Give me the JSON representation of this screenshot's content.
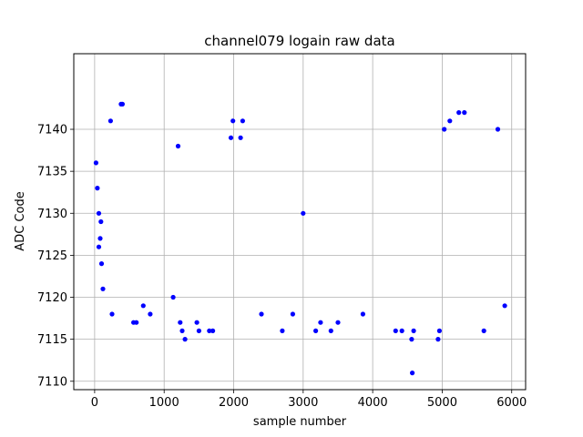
{
  "chart_data": {
    "type": "scatter",
    "title": "channel079 logain raw data",
    "xlabel": "sample number",
    "ylabel": "ADC Code",
    "xlim": [
      -300,
      6200
    ],
    "ylim": [
      7109,
      7149
    ],
    "xticks": [
      0,
      1000,
      2000,
      3000,
      4000,
      5000,
      6000
    ],
    "yticks": [
      7110,
      7115,
      7120,
      7125,
      7130,
      7135,
      7140
    ],
    "grid": true,
    "marker_color": "#0000ff",
    "series": [
      {
        "points": [
          [
            20,
            7136
          ],
          [
            40,
            7133
          ],
          [
            60,
            7130
          ],
          [
            80,
            7127
          ],
          [
            100,
            7124
          ],
          [
            120,
            7121
          ],
          [
            60,
            7126
          ],
          [
            90,
            7129
          ],
          [
            230,
            7141
          ],
          [
            250,
            7118
          ],
          [
            380,
            7143
          ],
          [
            400,
            7143
          ],
          [
            560,
            7117
          ],
          [
            600,
            7117
          ],
          [
            700,
            7119
          ],
          [
            800,
            7118
          ],
          [
            1130,
            7120
          ],
          [
            1200,
            7138
          ],
          [
            1230,
            7117
          ],
          [
            1260,
            7116
          ],
          [
            1300,
            7115
          ],
          [
            1470,
            7117
          ],
          [
            1500,
            7116
          ],
          [
            1650,
            7116
          ],
          [
            1700,
            7116
          ],
          [
            1960,
            7139
          ],
          [
            1990,
            7141
          ],
          [
            2130,
            7141
          ],
          [
            2100,
            7139
          ],
          [
            2400,
            7118
          ],
          [
            2700,
            7116
          ],
          [
            2850,
            7118
          ],
          [
            3000,
            7130
          ],
          [
            3180,
            7116
          ],
          [
            3250,
            7117
          ],
          [
            3400,
            7116
          ],
          [
            3500,
            7117
          ],
          [
            3860,
            7118
          ],
          [
            4330,
            7116
          ],
          [
            4420,
            7116
          ],
          [
            4560,
            7115
          ],
          [
            4570,
            7111
          ],
          [
            4590,
            7116
          ],
          [
            4940,
            7115
          ],
          [
            4960,
            7116
          ],
          [
            5030,
            7140
          ],
          [
            5110,
            7141
          ],
          [
            5240,
            7142
          ],
          [
            5320,
            7142
          ],
          [
            5600,
            7116
          ],
          [
            5800,
            7140
          ],
          [
            5900,
            7119
          ]
        ]
      }
    ]
  }
}
